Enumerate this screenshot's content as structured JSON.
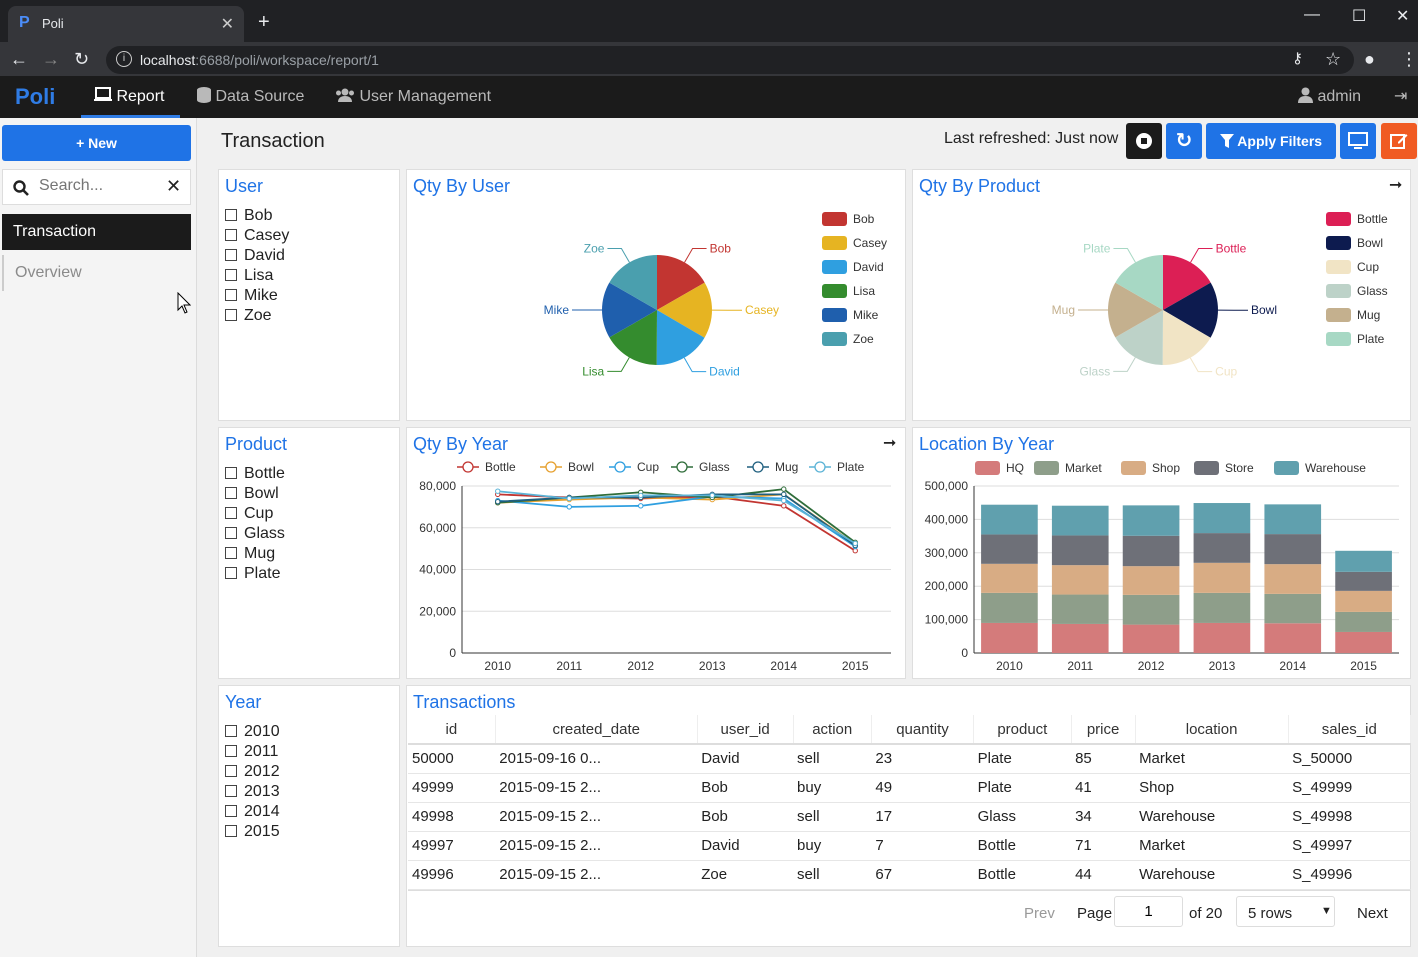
{
  "browser": {
    "tab_title": "Poli",
    "favicon": "P",
    "url_host": "localhost",
    "url_rest": ":6688/poli/workspace/report/1"
  },
  "app": {
    "logo": "Poli",
    "nav": [
      {
        "label": "Report",
        "icon": "monitor-icon"
      },
      {
        "label": "Data Source",
        "icon": "database-icon"
      },
      {
        "label": "User Management",
        "icon": "users-icon"
      }
    ],
    "user": "admin"
  },
  "sidebar": {
    "new_label": "+ New",
    "search_placeholder": "Search...",
    "items": [
      {
        "label": "Transaction",
        "active": true
      },
      {
        "label": "Overview",
        "active": false
      }
    ]
  },
  "report": {
    "title": "Transaction",
    "last_refreshed": "Last refreshed: Just now",
    "apply_filters": "Apply Filters"
  },
  "filters": {
    "user": {
      "title": "User",
      "options": [
        "Bob",
        "Casey",
        "David",
        "Lisa",
        "Mike",
        "Zoe"
      ]
    },
    "product": {
      "title": "Product",
      "options": [
        "Bottle",
        "Bowl",
        "Cup",
        "Glass",
        "Mug",
        "Plate"
      ]
    },
    "year": {
      "title": "Year",
      "options": [
        "2010",
        "2011",
        "2012",
        "2013",
        "2014",
        "2015"
      ]
    }
  },
  "chart_titles": {
    "qty_by_user": "Qty By User",
    "qty_by_product": "Qty By Product",
    "qty_by_year": "Qty By Year",
    "location_by_year": "Location By Year"
  },
  "chart_data": [
    {
      "type": "pie",
      "title": "Qty By User",
      "categories": [
        "Bob",
        "Casey",
        "David",
        "Lisa",
        "Mike",
        "Zoe"
      ],
      "values": [
        16.7,
        16.7,
        16.7,
        16.6,
        16.6,
        16.7
      ],
      "colors": [
        "#c23531",
        "#e6b422",
        "#2f9fe0",
        "#348c2e",
        "#1f5fad",
        "#4a9fae"
      ]
    },
    {
      "type": "pie",
      "title": "Qty By Product",
      "categories": [
        "Bottle",
        "Bowl",
        "Cup",
        "Glass",
        "Mug",
        "Plate"
      ],
      "values": [
        16.7,
        16.7,
        16.7,
        16.6,
        16.6,
        16.7
      ],
      "colors": [
        "#dc1f55",
        "#0d1b4f",
        "#f1e4c5",
        "#bdd2c8",
        "#c4b08e",
        "#a7d8c4"
      ]
    },
    {
      "type": "line",
      "title": "Qty By Year",
      "x": [
        "2010",
        "2011",
        "2012",
        "2013",
        "2014",
        "2015"
      ],
      "ylim": [
        0,
        80000
      ],
      "yticks": [
        "0",
        "20,000",
        "40,000",
        "60,000",
        "80,000"
      ],
      "series": [
        {
          "name": "Bottle",
          "color": "#c23531",
          "values": [
            76000,
            74500,
            74000,
            75000,
            70500,
            49000
          ]
        },
        {
          "name": "Bowl",
          "color": "#e6a02e",
          "values": [
            72000,
            73500,
            74500,
            73500,
            76000,
            52000
          ]
        },
        {
          "name": "Cup",
          "color": "#2f9fe0",
          "values": [
            73000,
            70000,
            70500,
            75000,
            74000,
            51000
          ]
        },
        {
          "name": "Glass",
          "color": "#2f6d3a",
          "values": [
            72000,
            74500,
            77000,
            74500,
            78500,
            53000
          ]
        },
        {
          "name": "Mug",
          "color": "#1f5f7f",
          "values": [
            72500,
            74500,
            74500,
            76000,
            76000,
            51500
          ]
        },
        {
          "name": "Plate",
          "color": "#5bb3d6",
          "values": [
            77500,
            74000,
            75500,
            75500,
            73000,
            52500
          ]
        }
      ]
    },
    {
      "type": "bar",
      "title": "Location By Year",
      "stacked": true,
      "categories": [
        "2010",
        "2011",
        "2012",
        "2013",
        "2014",
        "2015"
      ],
      "ylim": [
        0,
        500000
      ],
      "yticks": [
        "0",
        "100,000",
        "200,000",
        "300,000",
        "400,000",
        "500,000"
      ],
      "series": [
        {
          "name": "HQ",
          "color": "#d47b7b",
          "values": [
            90000,
            87000,
            85000,
            90000,
            89000,
            63000
          ]
        },
        {
          "name": "Market",
          "color": "#8e9e8a",
          "values": [
            90000,
            88000,
            89000,
            90000,
            88000,
            60000
          ]
        },
        {
          "name": "Shop",
          "color": "#d8ac84",
          "values": [
            87000,
            88000,
            86000,
            90000,
            89000,
            63000
          ]
        },
        {
          "name": "Store",
          "color": "#6e7078",
          "values": [
            88000,
            89000,
            91000,
            89000,
            90000,
            57000
          ]
        },
        {
          "name": "Warehouse",
          "color": "#60a0ae",
          "values": [
            89000,
            89000,
            91000,
            90000,
            89000,
            63000
          ]
        }
      ]
    }
  ],
  "table": {
    "title": "Transactions",
    "columns": [
      "id",
      "created_date",
      "user_id",
      "action",
      "quantity",
      "product",
      "price",
      "location",
      "sales_id"
    ],
    "rows": [
      [
        "50000",
        "2015-09-16 0...",
        "David",
        "sell",
        "23",
        "Plate",
        "85",
        "Market",
        "S_50000"
      ],
      [
        "49999",
        "2015-09-15 2...",
        "Bob",
        "buy",
        "49",
        "Plate",
        "41",
        "Shop",
        "S_49999"
      ],
      [
        "49998",
        "2015-09-15 2...",
        "Bob",
        "sell",
        "17",
        "Glass",
        "34",
        "Warehouse",
        "S_49998"
      ],
      [
        "49997",
        "2015-09-15 2...",
        "David",
        "buy",
        "7",
        "Bottle",
        "71",
        "Market",
        "S_49997"
      ],
      [
        "49996",
        "2015-09-15 2...",
        "Zoe",
        "sell",
        "67",
        "Bottle",
        "44",
        "Warehouse",
        "S_49996"
      ]
    ],
    "pagination": {
      "prev": "Prev",
      "page_label": "Page",
      "page": "1",
      "of": "of 20",
      "rows": "5 rows",
      "next": "Next"
    }
  }
}
